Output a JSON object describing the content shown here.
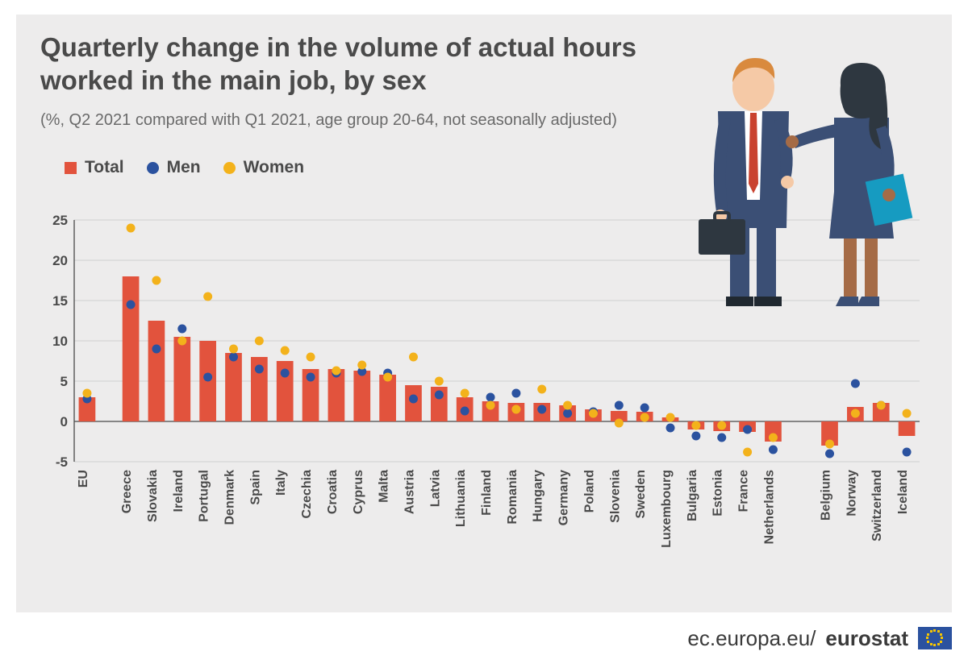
{
  "title": "Quarterly change in the volume of actual hours worked in the main job, by sex",
  "subtitle": "(%, Q2 2021 compared with Q1 2021, age group 20-64, not seasonally adjusted)",
  "legend": {
    "total": "Total",
    "men": "Men",
    "women": "Women"
  },
  "colors": {
    "total": "#e2533d",
    "men": "#2b529f",
    "women": "#f3b21b",
    "background": "#edecec",
    "grid": "#cfcfcf",
    "axis": "#4a4a4a",
    "title_text": "#4a4a4a",
    "subtitle_text": "#6a6a6a"
  },
  "chart": {
    "type": "bar-with-markers",
    "ylim": [
      -5,
      25
    ],
    "ytick_step": 5,
    "yticks": [
      -5,
      0,
      5,
      10,
      15,
      20,
      25
    ],
    "bar_width_ratio": 0.65,
    "marker_radius": 5.5,
    "group_gap_after": 0,
    "extra_gap_before": 27,
    "title_fontsize": 33,
    "subtitle_fontsize": 20,
    "legend_fontsize": 21,
    "tick_fontsize": 17,
    "label_fontsize": 16,
    "categories": [
      "EU",
      "Greece",
      "Slovakia",
      "Ireland",
      "Portugal",
      "Denmark",
      "Spain",
      "Italy",
      "Czechia",
      "Croatia",
      "Cyprus",
      "Malta",
      "Austria",
      "Latvia",
      "Lithuania",
      "Finland",
      "Romania",
      "Hungary",
      "Germany",
      "Poland",
      "Slovenia",
      "Sweden",
      "Luxembourg",
      "Bulgaria",
      "Estonia",
      "France",
      "Netherlands",
      "Belgium",
      "Norway",
      "Switzerland",
      "Iceland"
    ],
    "series": {
      "total": [
        3.0,
        18.0,
        12.5,
        10.5,
        10.0,
        8.5,
        8.0,
        7.5,
        6.5,
        6.5,
        6.3,
        5.8,
        4.5,
        4.3,
        3.0,
        2.5,
        2.3,
        2.3,
        2.0,
        1.5,
        1.3,
        1.2,
        0.5,
        -1.0,
        -1.2,
        -1.3,
        -2.5,
        -3.0,
        1.8,
        2.3,
        -1.8
      ],
      "men": [
        2.8,
        14.5,
        9.0,
        11.5,
        5.5,
        8.0,
        6.5,
        6.0,
        5.5,
        6.0,
        6.2,
        6.0,
        2.8,
        3.3,
        1.3,
        3.0,
        3.5,
        1.5,
        1.0,
        1.2,
        2.0,
        1.7,
        -0.8,
        -1.8,
        -2.0,
        -1.0,
        -3.5,
        -4.0,
        4.7,
        2.0,
        -3.8
      ],
      "women": [
        3.5,
        24.0,
        17.5,
        10.0,
        15.5,
        9.0,
        10.0,
        8.8,
        8.0,
        6.3,
        7.0,
        5.5,
        8.0,
        5.0,
        3.5,
        2.0,
        1.5,
        4.0,
        2.0,
        1.0,
        -0.2,
        0.5,
        0.5,
        -0.5,
        -0.5,
        -3.8,
        -2.0,
        -2.8,
        1.0,
        2.0,
        1.0
      ]
    }
  },
  "footer": {
    "domain": "ec.europa.eu/",
    "brand": "eurostat"
  },
  "illustration": {
    "man_suit": "#3b4f75",
    "man_hair": "#d98a3e",
    "man_skin": "#f5c9a6",
    "man_tie": "#c9422f",
    "man_shirt": "#ffffff",
    "briefcase": "#2e3740",
    "woman_suit": "#3b4f75",
    "woman_hair": "#2e3740",
    "woman_skin": "#a56b46",
    "folder": "#169bc1",
    "woman_legs": "#a56b46"
  }
}
